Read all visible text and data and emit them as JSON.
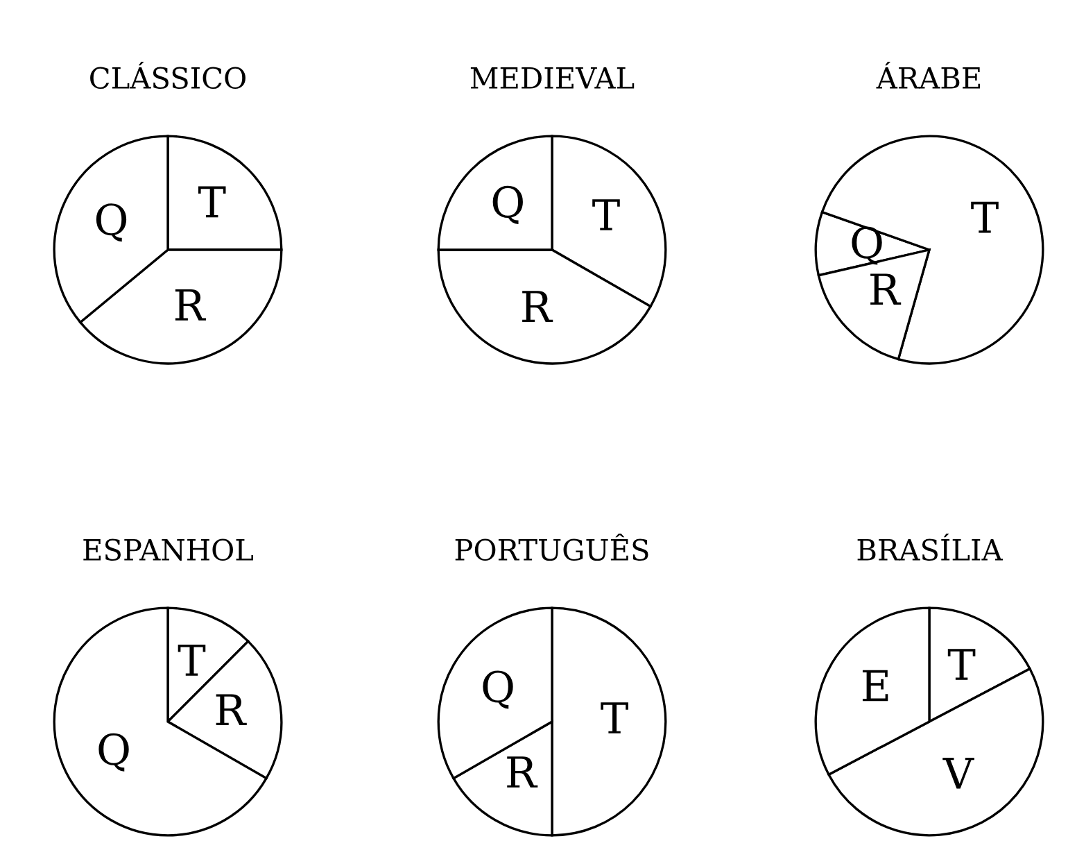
{
  "chart_data": [
    {
      "type": "pie",
      "title": "CLÁSSICO",
      "categories": [
        "T",
        "R",
        "Q"
      ],
      "values": [
        25,
        39,
        36
      ],
      "colors": [
        "#ffffff",
        "#ffffff",
        "#ffffff"
      ]
    },
    {
      "type": "pie",
      "title": "MEDIEVAL",
      "categories": [
        "T",
        "R",
        "Q"
      ],
      "values": [
        33.3,
        41.7,
        25
      ],
      "colors": [
        "#ffffff",
        "#ffffff",
        "#ffffff"
      ]
    },
    {
      "type": "pie",
      "title": "ÁRABE",
      "categories": [
        "Q",
        "T",
        "R"
      ],
      "values": [
        9,
        74,
        17
      ],
      "colors": [
        "#ffffff",
        "#ffffff",
        "#ffffff"
      ]
    },
    {
      "type": "pie",
      "title": "ESPANHOL",
      "categories": [
        "T",
        "R",
        "Q"
      ],
      "values": [
        12.5,
        20.8,
        66.7
      ],
      "colors": [
        "#ffffff",
        "#ffffff",
        "#ffffff"
      ]
    },
    {
      "type": "pie",
      "title": "PORTUGUÊS",
      "categories": [
        "T",
        "R",
        "Q"
      ],
      "values": [
        50,
        16.7,
        33.3
      ],
      "colors": [
        "#ffffff",
        "#ffffff",
        "#ffffff"
      ]
    },
    {
      "type": "pie",
      "title": "BRASÍLIA",
      "categories": [
        "T",
        "V",
        "E"
      ],
      "values": [
        17.3,
        50,
        32.7
      ],
      "colors": [
        "#ffffff",
        "#ffffff",
        "#ffffff"
      ]
    }
  ]
}
